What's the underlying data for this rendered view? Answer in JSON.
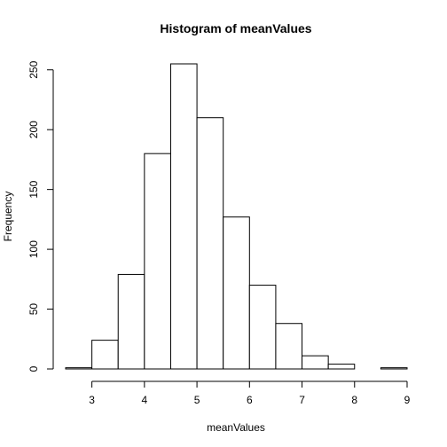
{
  "chart_data": {
    "type": "bar",
    "title": "Histogram of meanValues",
    "xlabel": "meanValues",
    "ylabel": "Frequency",
    "bins": [
      {
        "from": 2.5,
        "to": 3.0,
        "count": 1
      },
      {
        "from": 3.0,
        "to": 3.5,
        "count": 24
      },
      {
        "from": 3.5,
        "to": 4.0,
        "count": 79
      },
      {
        "from": 4.0,
        "to": 4.5,
        "count": 180
      },
      {
        "from": 4.5,
        "to": 5.0,
        "count": 255
      },
      {
        "from": 5.0,
        "to": 5.5,
        "count": 210
      },
      {
        "from": 5.5,
        "to": 6.0,
        "count": 127
      },
      {
        "from": 6.0,
        "to": 6.5,
        "count": 70
      },
      {
        "from": 6.5,
        "to": 7.0,
        "count": 38
      },
      {
        "from": 7.0,
        "to": 7.5,
        "count": 11
      },
      {
        "from": 7.5,
        "to": 8.0,
        "count": 4
      },
      {
        "from": 8.0,
        "to": 8.5,
        "count": 0
      },
      {
        "from": 8.5,
        "to": 9.0,
        "count": 1
      }
    ],
    "xlim": [
      2.5,
      9.0
    ],
    "ylim": [
      0,
      255
    ],
    "x_ticks": [
      3,
      4,
      5,
      6,
      7,
      8,
      9
    ],
    "y_ticks": [
      0,
      50,
      100,
      150,
      200,
      250
    ],
    "grid": false,
    "bar_fill": "#ffffff",
    "bar_stroke": "#000000"
  }
}
